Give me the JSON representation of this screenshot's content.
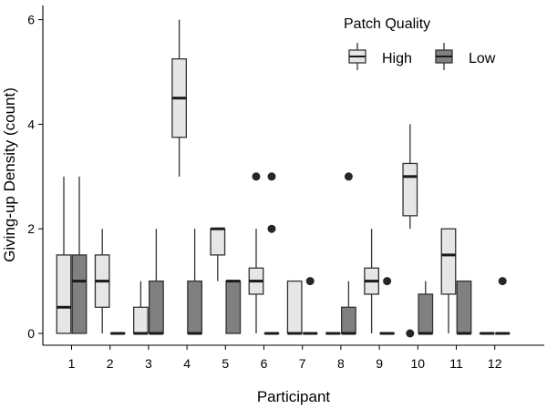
{
  "chart_data": {
    "type": "boxplot",
    "xlabel": "Participant",
    "ylabel": "Giving-up Density (count)",
    "ylim": [
      -0.1,
      6.15
    ],
    "yticks": [
      0,
      2,
      4,
      6
    ],
    "categories": [
      "1",
      "2",
      "3",
      "4",
      "5",
      "6",
      "7",
      "8",
      "9",
      "10",
      "11",
      "12"
    ],
    "legend": {
      "title": "Patch Quality",
      "placement": "top-right",
      "entries": [
        "High",
        "Low"
      ]
    },
    "colors": {
      "High": "#e6e6e6",
      "Low": "#808080",
      "outline": "#333333"
    },
    "series": [
      {
        "name": "High",
        "boxes": [
          {
            "min": 0,
            "q1": 0,
            "median": 0.5,
            "q3": 1.5,
            "max": 3,
            "outliers": []
          },
          {
            "min": 0,
            "q1": 0.5,
            "median": 1,
            "q3": 1.5,
            "max": 2,
            "outliers": []
          },
          {
            "min": 0,
            "q1": 0,
            "median": 0,
            "q3": 0.5,
            "max": 1,
            "outliers": []
          },
          {
            "min": 3,
            "q1": 3.75,
            "median": 4.5,
            "q3": 5.25,
            "max": 6,
            "outliers": []
          },
          {
            "min": 1,
            "q1": 1.5,
            "median": 2,
            "q3": 2,
            "max": 2,
            "outliers": []
          },
          {
            "min": 0,
            "q1": 0.75,
            "median": 1,
            "q3": 1.25,
            "max": 2,
            "outliers": [
              3
            ]
          },
          {
            "min": 0,
            "q1": 0,
            "median": 0,
            "q3": 1,
            "max": 1,
            "outliers": []
          },
          {
            "min": 0,
            "q1": 0,
            "median": 0,
            "q3": 0,
            "max": 0,
            "outliers": []
          },
          {
            "min": 0,
            "q1": 0.75,
            "median": 1,
            "q3": 1.25,
            "max": 2,
            "outliers": []
          },
          {
            "min": 2,
            "q1": 2.25,
            "median": 3,
            "q3": 3.25,
            "max": 4,
            "outliers": [
              0
            ]
          },
          {
            "min": 0,
            "q1": 0.75,
            "median": 1.5,
            "q3": 2,
            "max": 2,
            "outliers": []
          },
          {
            "min": 0,
            "q1": 0,
            "median": 0,
            "q3": 0,
            "max": 0,
            "outliers": []
          }
        ]
      },
      {
        "name": "Low",
        "boxes": [
          {
            "min": 0,
            "q1": 0,
            "median": 1,
            "q3": 1.5,
            "max": 3,
            "outliers": []
          },
          {
            "min": 0,
            "q1": 0,
            "median": 0,
            "q3": 0,
            "max": 0,
            "outliers": []
          },
          {
            "min": 0,
            "q1": 0,
            "median": 0,
            "q3": 1,
            "max": 2,
            "outliers": []
          },
          {
            "min": 0,
            "q1": 0,
            "median": 0,
            "q3": 1,
            "max": 2,
            "outliers": []
          },
          {
            "min": 0,
            "q1": 0,
            "median": 1,
            "q3": 1,
            "max": 1,
            "outliers": []
          },
          {
            "min": 0,
            "q1": 0,
            "median": 0,
            "q3": 0,
            "max": 0,
            "outliers": [
              2,
              3
            ]
          },
          {
            "min": 0,
            "q1": 0,
            "median": 0,
            "q3": 0,
            "max": 0,
            "outliers": [
              1
            ]
          },
          {
            "min": 0,
            "q1": 0,
            "median": 0,
            "q3": 0.5,
            "max": 1,
            "outliers": [
              3
            ]
          },
          {
            "min": 0,
            "q1": 0,
            "median": 0,
            "q3": 0,
            "max": 0,
            "outliers": [
              1
            ]
          },
          {
            "min": 0,
            "q1": 0,
            "median": 0,
            "q3": 0.75,
            "max": 1,
            "outliers": []
          },
          {
            "min": 0,
            "q1": 0,
            "median": 0,
            "q3": 1,
            "max": 1,
            "outliers": []
          },
          {
            "min": 0,
            "q1": 0,
            "median": 0,
            "q3": 0,
            "max": 0,
            "outliers": [
              1
            ]
          }
        ]
      }
    ]
  }
}
